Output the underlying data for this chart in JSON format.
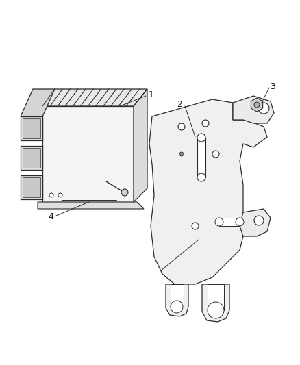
{
  "bg_color": "#ffffff",
  "line_color": "#2a2a2a",
  "lw": 0.9,
  "figsize": [
    4.39,
    5.33
  ],
  "dpi": 100,
  "xlim": [
    0,
    439
  ],
  "ylim": [
    0,
    533
  ]
}
